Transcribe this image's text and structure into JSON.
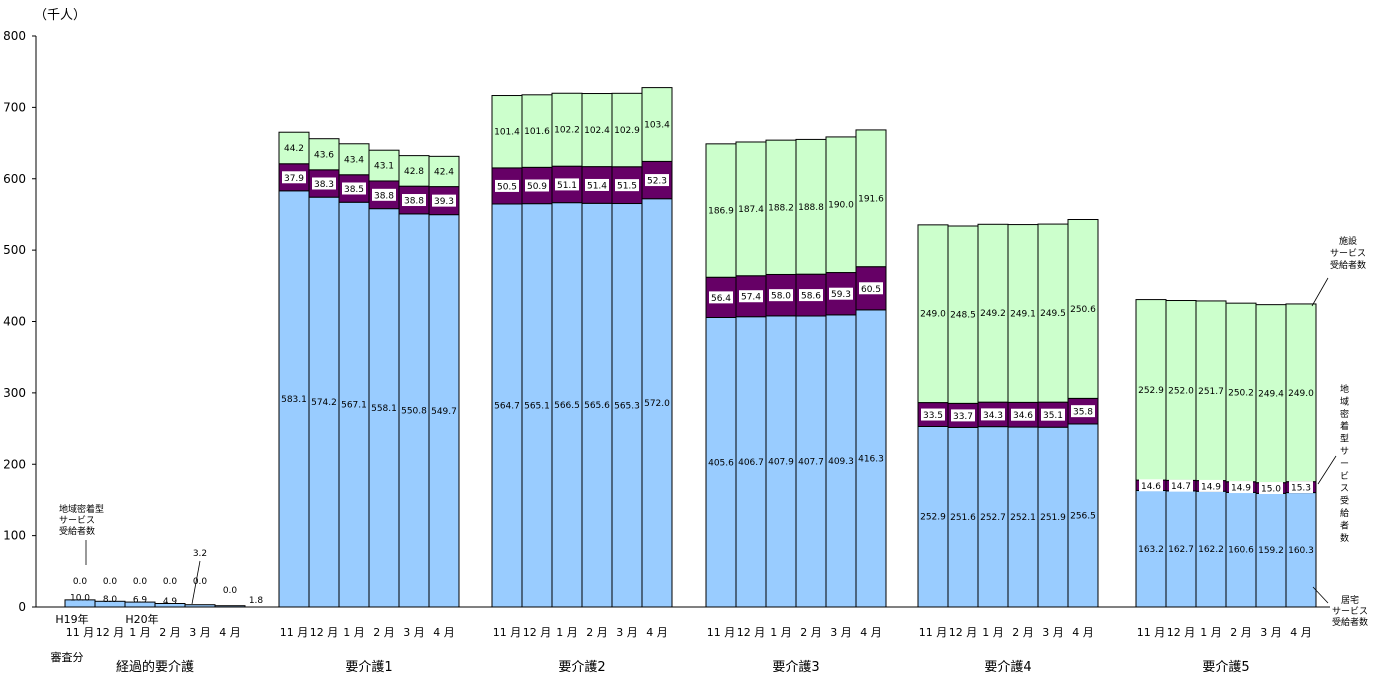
{
  "chart_data": {
    "type": "bar",
    "stacked": true,
    "unit_label": "（千人）",
    "ylim": [
      0,
      800
    ],
    "yticks": [
      "0",
      "100",
      "200",
      "300",
      "400",
      "500",
      "600",
      "700",
      "800"
    ],
    "grid": false,
    "colors": {
      "home": "#99ccff",
      "community": "#660066",
      "facility": "#ccffcc",
      "label_box": "#ffffff",
      "outline": "#000000"
    },
    "month_labels": [
      "11 月",
      "12 月",
      "1 月",
      "2 月",
      "3 月",
      "4 月"
    ],
    "groups": [
      {
        "name": "経過的要介護",
        "home": [
          10.0,
          8.0,
          6.9,
          4.9,
          3.2,
          1.8
        ],
        "community": [
          0.0,
          0.0,
          0.0,
          0.0,
          0.0,
          0.0
        ],
        "facility": [
          0.0,
          0.0,
          0.0,
          0.0,
          0.0,
          0.0
        ],
        "home_labels": [
          "10.0",
          "8.0",
          "6.9",
          "4.9",
          "3.2",
          "1.8"
        ],
        "community_labels": [
          "0.0",
          "0.0",
          "0.0",
          "0.0",
          "0.0",
          "0.0"
        ]
      },
      {
        "name": "要介護1",
        "home": [
          583.1,
          574.2,
          567.1,
          558.1,
          550.8,
          549.7
        ],
        "community": [
          37.9,
          38.3,
          38.5,
          38.8,
          38.8,
          39.3
        ],
        "facility": [
          44.2,
          43.6,
          43.4,
          43.1,
          42.8,
          42.4
        ],
        "home_labels": [
          "583.1",
          "574.2",
          "567.1",
          "558.1",
          "550.8",
          "549.7"
        ],
        "community_labels": [
          "37.9",
          "38.3",
          "38.5",
          "38.8",
          "38.8",
          "39.3"
        ],
        "facility_labels": [
          "44.2",
          "43.6",
          "43.4",
          "43.1",
          "42.8",
          "42.4"
        ]
      },
      {
        "name": "要介護2",
        "home": [
          564.7,
          565.1,
          566.5,
          565.6,
          565.3,
          572.0
        ],
        "community": [
          50.5,
          50.9,
          51.1,
          51.4,
          51.5,
          52.3
        ],
        "facility": [
          101.4,
          101.6,
          102.2,
          102.4,
          102.9,
          103.4
        ],
        "home_labels": [
          "564.7",
          "565.1",
          "566.5",
          "565.6",
          "565.3",
          "572.0"
        ],
        "community_labels": [
          "50.5",
          "50.9",
          "51.1",
          "51.4",
          "51.5",
          "52.3"
        ],
        "facility_labels": [
          "101.4",
          "101.6",
          "102.2",
          "102.4",
          "102.9",
          "103.4"
        ]
      },
      {
        "name": "要介護3",
        "home": [
          405.6,
          406.7,
          407.9,
          407.7,
          409.3,
          416.3
        ],
        "community": [
          56.4,
          57.4,
          58.0,
          58.6,
          59.3,
          60.5
        ],
        "facility": [
          186.9,
          187.4,
          188.2,
          188.8,
          190.0,
          191.6
        ],
        "home_labels": [
          "405.6",
          "406.7",
          "407.9",
          "407.7",
          "409.3",
          "416.3"
        ],
        "community_labels": [
          "56.4",
          "57.4",
          "58.0",
          "58.6",
          "59.3",
          "60.5"
        ],
        "facility_labels": [
          "186.9",
          "187.4",
          "188.2",
          "188.8",
          "190.0",
          "191.6"
        ]
      },
      {
        "name": "要介護4",
        "home": [
          252.9,
          251.6,
          252.7,
          252.1,
          251.9,
          256.5
        ],
        "community": [
          33.5,
          33.7,
          34.3,
          34.6,
          35.1,
          35.8
        ],
        "facility": [
          249.0,
          248.5,
          249.2,
          249.1,
          249.5,
          250.6
        ],
        "home_labels": [
          "252.9",
          "251.6",
          "252.7",
          "252.1",
          "251.9",
          "256.5"
        ],
        "community_labels": [
          "33.5",
          "33.7",
          "34.3",
          "34.6",
          "35.1",
          "35.8"
        ],
        "facility_labels": [
          "249.0",
          "248.5",
          "249.2",
          "249.1",
          "249.5",
          "250.6"
        ]
      },
      {
        "name": "要介護5",
        "home": [
          163.2,
          162.7,
          162.2,
          160.6,
          159.2,
          160.3
        ],
        "community": [
          14.6,
          14.7,
          14.9,
          14.9,
          15.0,
          15.3
        ],
        "facility": [
          252.9,
          252.0,
          251.7,
          250.2,
          249.4,
          249.0
        ],
        "home_labels": [
          "163.2",
          "162.7",
          "162.2",
          "160.6",
          "159.2",
          "160.3"
        ],
        "community_labels": [
          "14.6",
          "14.7",
          "14.9",
          "14.9",
          "15.0",
          "15.3"
        ],
        "facility_labels": [
          "252.9",
          "252.0",
          "251.7",
          "250.2",
          "249.4",
          "249.0"
        ]
      }
    ],
    "first_group_year_labels": [
      "H19年",
      "H20年"
    ],
    "first_group_footnote": "審査分",
    "annotations": {
      "community_left": [
        "地域密着型",
        "サービス",
        "受給者数"
      ],
      "facility_right": [
        "施設",
        "サービス",
        "受給者数"
      ],
      "community_right_vertical": "地域密着型サービス受給者数",
      "home_right": [
        "居宅",
        "サービス",
        "受給者数"
      ]
    }
  }
}
